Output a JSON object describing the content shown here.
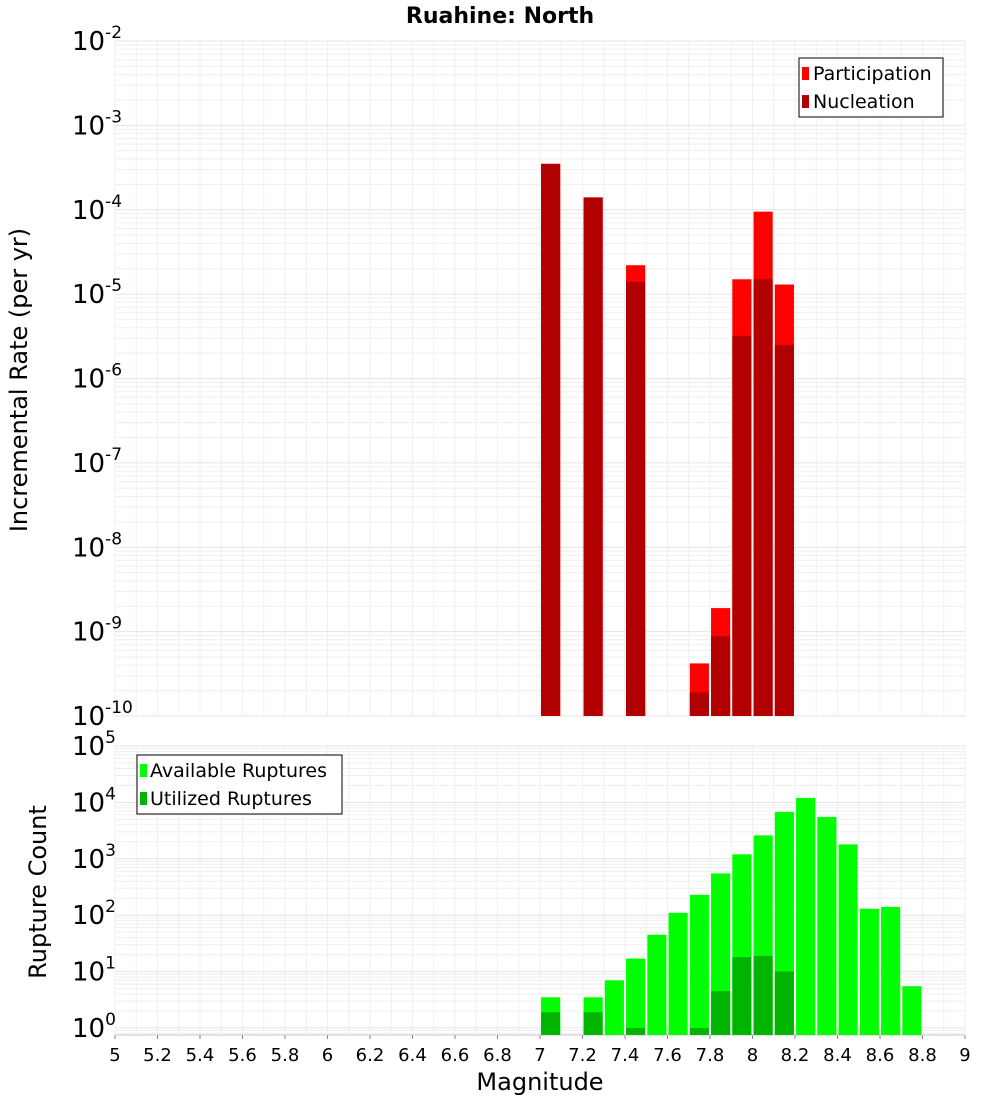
{
  "chart_data": [
    {
      "type": "bar",
      "title": "Ruahine: North",
      "xlabel": "",
      "ylabel": "Incremental Rate (per yr)",
      "xlim": [
        5,
        9
      ],
      "ylim": [
        1e-10,
        0.01
      ],
      "yscale": "log",
      "y_tick_exponents": [
        -10,
        -9,
        -8,
        -7,
        -6,
        -5,
        -4,
        -3,
        -2
      ],
      "legend": {
        "placement": "top-right"
      },
      "bar_width": 0.09,
      "series": [
        {
          "name": "Participation",
          "color": "#ff0000",
          "x": [
            7.05,
            7.25,
            7.45,
            7.75,
            7.85,
            7.95,
            8.05,
            8.15
          ],
          "values": [
            0.00035,
            0.00014,
            2.2e-05,
            4.2e-10,
            1.9e-09,
            1.5e-05,
            9.5e-05,
            1.3e-05
          ]
        },
        {
          "name": "Nucleation",
          "color": "#b00000",
          "x": [
            7.05,
            7.25,
            7.45,
            7.75,
            7.85,
            7.95,
            8.05,
            8.15
          ],
          "values": [
            0.00035,
            0.00014,
            1.4e-05,
            1.9e-10,
            8.8e-10,
            3.2e-06,
            1.5e-05,
            2.5e-06
          ]
        }
      ]
    },
    {
      "type": "bar",
      "title": "",
      "xlabel": "Magnitude",
      "ylabel": "Rupture Count",
      "xlim": [
        5,
        9
      ],
      "ylim": [
        0.75,
        100000.0
      ],
      "yscale": "log",
      "y_tick_exponents": [
        0,
        1,
        2,
        3,
        4,
        5
      ],
      "x_ticks": [
        "5",
        "5.2",
        "5.4",
        "5.6",
        "5.8",
        "6",
        "6.2",
        "6.4",
        "6.6",
        "6.8",
        "7",
        "7.2",
        "7.4",
        "7.6",
        "7.8",
        "8",
        "8.2",
        "8.4",
        "8.6",
        "8.8",
        "9"
      ],
      "legend": {
        "placement": "top-left"
      },
      "bar_width": 0.09,
      "series": [
        {
          "name": "Available Ruptures",
          "color": "#00ff00",
          "x": [
            7.05,
            7.25,
            7.35,
            7.45,
            7.55,
            7.65,
            7.75,
            7.85,
            7.95,
            8.05,
            8.15,
            8.25,
            8.35,
            8.45,
            8.55,
            8.65,
            8.75
          ],
          "values": [
            3.5,
            3.5,
            7,
            17,
            45,
            110,
            230,
            550,
            1200,
            2600,
            6800,
            12000,
            5500,
            1800,
            130,
            140,
            5.5
          ]
        },
        {
          "name": "Utilized Ruptures",
          "color": "#00b400",
          "x": [
            7.05,
            7.25,
            7.45,
            7.75,
            7.85,
            7.95,
            8.05,
            8.15
          ],
          "values": [
            1.9,
            1.9,
            1,
            1,
            4.5,
            18,
            19,
            10
          ]
        }
      ]
    }
  ]
}
